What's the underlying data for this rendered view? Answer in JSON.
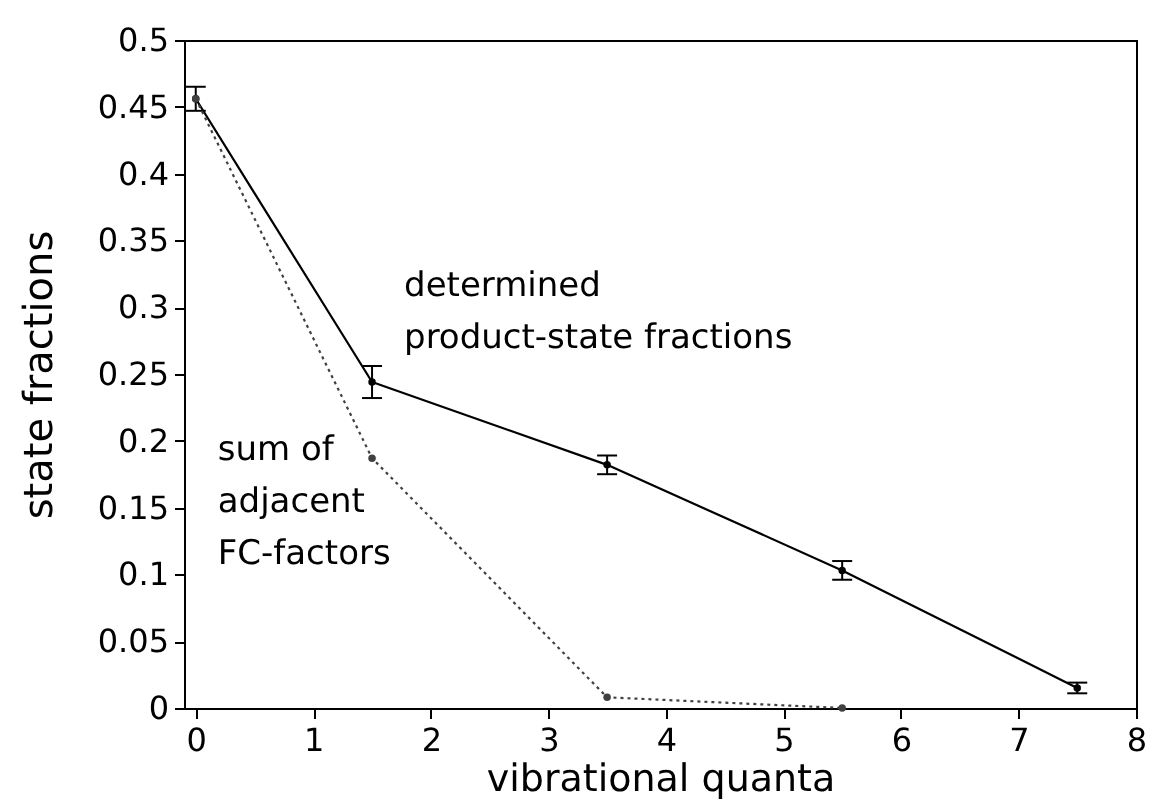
{
  "chart_data": {
    "type": "line",
    "xlabel": "vibrational quanta",
    "ylabel": "state fractions",
    "x": [
      0,
      1.5,
      3.5,
      5.5,
      7.5
    ],
    "xlim": [
      -0.1,
      8
    ],
    "xticks": [
      0,
      1,
      2,
      3,
      4,
      5,
      6,
      7,
      8
    ],
    "ylim": [
      0,
      0.5
    ],
    "yticks": [
      0,
      0.05,
      0.1,
      0.15,
      0.2,
      0.25,
      0.3,
      0.35,
      0.4,
      0.45,
      0.5
    ],
    "marker": "circle",
    "series": [
      {
        "name": "determined\nproduct-state fractions",
        "color": "#000000",
        "line_style": "solid",
        "values": [
          0.456,
          0.244,
          0.182,
          0.103,
          0.015
        ],
        "errors": [
          0.009,
          0.012,
          0.007,
          0.007,
          0.004
        ]
      },
      {
        "name": "sum of\nadjacent\nFC-factors",
        "color": "#404040",
        "line_style": "dotted",
        "x": [
          0,
          1.5,
          3.5,
          5.5
        ],
        "values": [
          0.456,
          0.187,
          0.008,
          0.0
        ]
      }
    ]
  }
}
